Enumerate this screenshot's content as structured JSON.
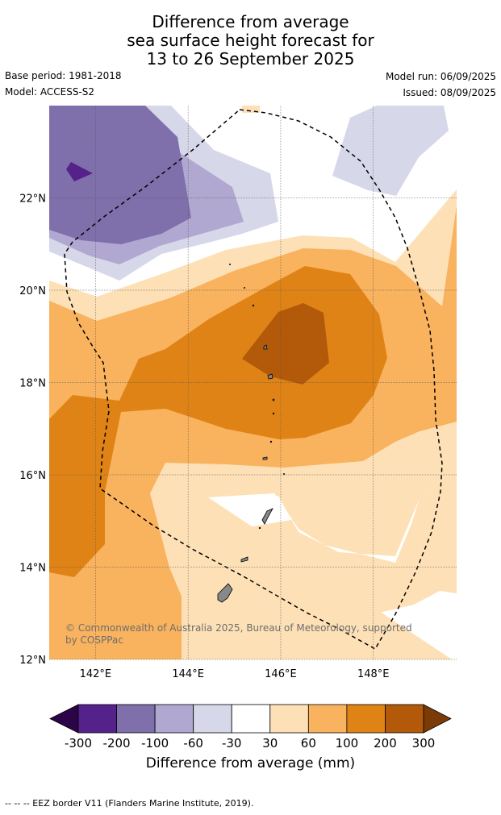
{
  "title": {
    "line1": "Difference from average",
    "line2": "sea surface height forecast for",
    "line3": "13 to 26 September 2025"
  },
  "meta": {
    "base_period": "Base period: 1981-2018",
    "model": "Model: ACCESS-S2",
    "model_run": "Model run: 06/09/2025",
    "issued": "Issued: 08/09/2025"
  },
  "map": {
    "lon_range": [
      141.0,
      149.8
    ],
    "lat_range": [
      12.0,
      24.0
    ],
    "lon_ticks": [
      {
        "value": 142,
        "label": "142°E"
      },
      {
        "value": 144,
        "label": "144°E"
      },
      {
        "value": 146,
        "label": "146°E"
      },
      {
        "value": 148,
        "label": "148°E"
      }
    ],
    "lat_ticks": [
      {
        "value": 12,
        "label": "12°N"
      },
      {
        "value": 14,
        "label": "14°N"
      },
      {
        "value": 16,
        "label": "16°N"
      },
      {
        "value": 18,
        "label": "18°N"
      },
      {
        "value": 20,
        "label": "20°N"
      },
      {
        "value": 22,
        "label": "22°N"
      }
    ],
    "gridlines": true,
    "copyright": "© Commonwealth of Australia 2025, Bureau of Meteorology, supported by COSPPac"
  },
  "colorbar": {
    "labels": [
      "-300",
      "-200",
      "-100",
      "-60",
      "-30",
      "30",
      "60",
      "100",
      "200",
      "300"
    ],
    "colors": [
      "#54228a",
      "#7f6fab",
      "#b0a8d0",
      "#d7d7ea",
      "#ffffff",
      "#fde0b6",
      "#f9b25d",
      "#e08316",
      "#b2590a"
    ],
    "under_color": "#2c0549",
    "over_color": "#7c3a07",
    "title": "Difference from average (mm)"
  },
  "footer": "--  --  -- EEZ border V11 (Flanders Marine Institute, 2019)."
}
